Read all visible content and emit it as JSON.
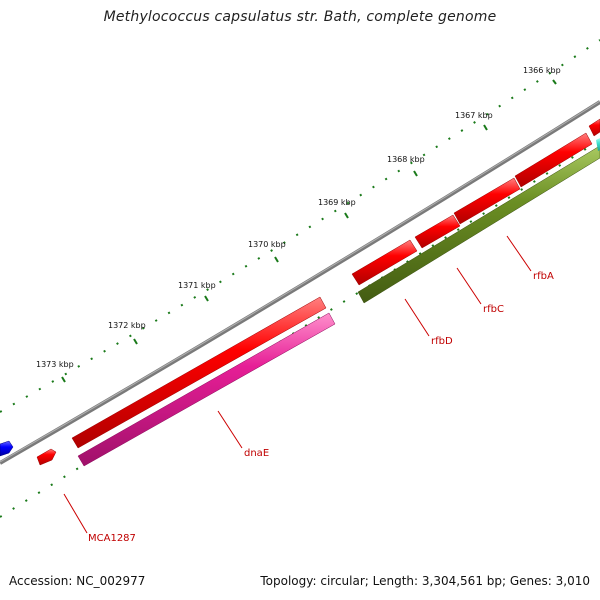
{
  "title": "Methylococcus capsulatus str. Bath, complete genome",
  "footer": {
    "accession": "Accession: NC_002977",
    "summary": "Topology: circular; Length: 3,304,561 bp; Genes: 3,010"
  },
  "colors": {
    "backbone": "#808080",
    "tick": "#1a7a1a",
    "label": "#c00000",
    "red_gene": "#ff0000",
    "pink_gene": "#e61e96",
    "olive_gene": "#6b8e23",
    "blue_gene": "#0000ff",
    "cyan_gene": "#40e0d0"
  },
  "scale_labels": [
    "1366 kbp",
    "1367 kbp",
    "1368 kbp",
    "1369 kbp",
    "1370 kbp",
    "1371 kbp",
    "1372 kbp",
    "1373 kbp"
  ],
  "gene_labels": [
    "rfbA",
    "rfbC",
    "rfbD",
    "dnaE",
    "MCA1287"
  ]
}
